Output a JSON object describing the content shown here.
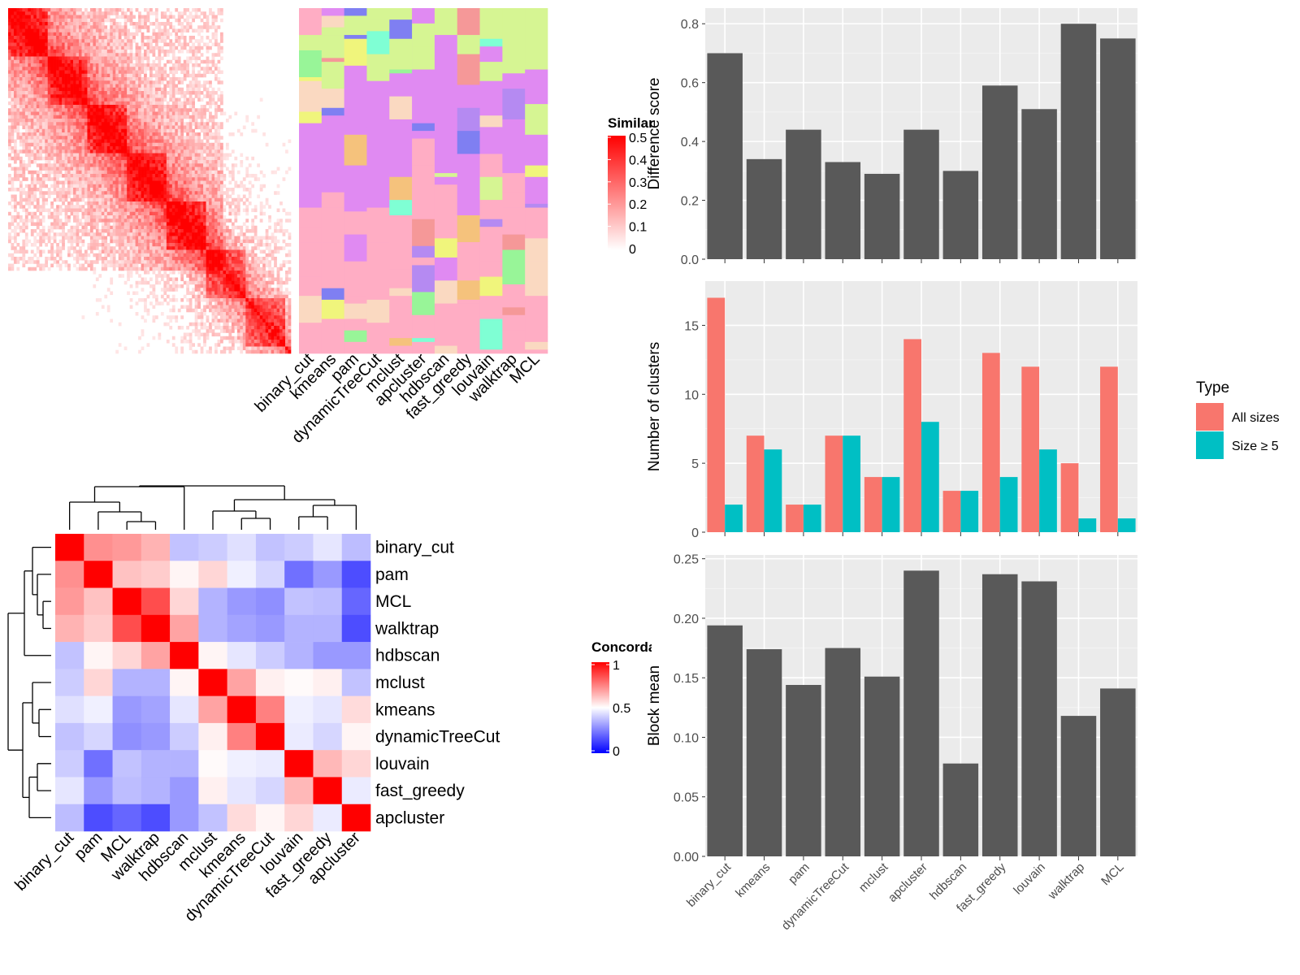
{
  "chart_data": [
    {
      "type": "heatmap",
      "legend": {
        "title": "Similarity",
        "ticks": [
          "0.5",
          "0.4",
          "0.3",
          "0.2",
          "0.1",
          "0"
        ],
        "range": [
          0,
          0.5
        ]
      },
      "column_labels": [
        "binary_cut",
        "kmeans",
        "pam",
        "dynamicTreeCut",
        "mclust",
        "apcluster",
        "hdbscan",
        "fast_greedy",
        "louvain",
        "walktrap",
        "MCL"
      ]
    },
    {
      "type": "heatmap",
      "legend": {
        "title": "Concordance",
        "ticks": [
          "1",
          "0.5",
          "0"
        ],
        "range": [
          0,
          1
        ]
      },
      "labels": [
        "binary_cut",
        "pam",
        "MCL",
        "walktrap",
        "hdbscan",
        "mclust",
        "kmeans",
        "dynamicTreeCut",
        "louvain",
        "fast_greedy",
        "apcluster"
      ],
      "matrix": [
        [
          1.0,
          0.72,
          0.7,
          0.65,
          0.38,
          0.4,
          0.44,
          0.38,
          0.4,
          0.45,
          0.37
        ],
        [
          0.72,
          1.0,
          0.62,
          0.6,
          0.52,
          0.58,
          0.47,
          0.42,
          0.22,
          0.3,
          0.15
        ],
        [
          0.7,
          0.62,
          1.0,
          0.85,
          0.58,
          0.35,
          0.3,
          0.28,
          0.38,
          0.37,
          0.2
        ],
        [
          0.65,
          0.6,
          0.85,
          1.0,
          0.68,
          0.35,
          0.32,
          0.3,
          0.35,
          0.35,
          0.15
        ],
        [
          0.38,
          0.52,
          0.58,
          0.68,
          1.0,
          0.52,
          0.45,
          0.4,
          0.35,
          0.3,
          0.3
        ],
        [
          0.4,
          0.58,
          0.35,
          0.35,
          0.52,
          1.0,
          0.68,
          0.53,
          0.51,
          0.53,
          0.38
        ],
        [
          0.44,
          0.47,
          0.3,
          0.32,
          0.45,
          0.68,
          1.0,
          0.75,
          0.47,
          0.45,
          0.57
        ],
        [
          0.38,
          0.42,
          0.28,
          0.3,
          0.4,
          0.53,
          0.75,
          1.0,
          0.46,
          0.42,
          0.52
        ],
        [
          0.4,
          0.22,
          0.38,
          0.35,
          0.35,
          0.51,
          0.47,
          0.46,
          1.0,
          0.64,
          0.58
        ],
        [
          0.45,
          0.3,
          0.37,
          0.35,
          0.3,
          0.53,
          0.45,
          0.42,
          0.64,
          1.0,
          0.46
        ],
        [
          0.37,
          0.15,
          0.2,
          0.15,
          0.3,
          0.38,
          0.57,
          0.52,
          0.58,
          0.46,
          1.0
        ]
      ]
    },
    {
      "type": "bar",
      "categories": [
        "binary_cut",
        "kmeans",
        "pam",
        "dynamicTreeCut",
        "mclust",
        "apcluster",
        "hdbscan",
        "fast_greedy",
        "louvain",
        "walktrap",
        "MCL"
      ],
      "values": [
        0.7,
        0.34,
        0.44,
        0.33,
        0.29,
        0.44,
        0.3,
        0.59,
        0.51,
        0.8,
        0.75
      ],
      "ylabel": "Difference score",
      "ylim": [
        0,
        0.82
      ],
      "yticks": [
        0.0,
        0.2,
        0.4,
        0.6,
        0.8
      ],
      "yticklabels": [
        "0.0",
        "0.2",
        "0.4",
        "0.6",
        "0.8"
      ],
      "grid": true
    },
    {
      "type": "bar",
      "categories": [
        "binary_cut",
        "kmeans",
        "pam",
        "dynamicTreeCut",
        "mclust",
        "apcluster",
        "hdbscan",
        "fast_greedy",
        "louvain",
        "walktrap",
        "MCL"
      ],
      "series": [
        {
          "name": "All sizes",
          "values": [
            17,
            7,
            2,
            7,
            4,
            14,
            3,
            13,
            12,
            5,
            12
          ],
          "color": "#F8766D"
        },
        {
          "name": "Size ≥ 5",
          "values": [
            2,
            6,
            2,
            7,
            4,
            8,
            3,
            4,
            6,
            1,
            1
          ],
          "color": "#00BFC4"
        }
      ],
      "ylabel": "Number of clusters",
      "ylim": [
        0,
        17.5
      ],
      "yticks": [
        0,
        5,
        10,
        15
      ],
      "yticklabels": [
        "0",
        "5",
        "10",
        "15"
      ],
      "legend": {
        "title": "Type",
        "position": "right"
      },
      "grid": true
    },
    {
      "type": "bar",
      "categories": [
        "binary_cut",
        "kmeans",
        "pam",
        "dynamicTreeCut",
        "mclust",
        "apcluster",
        "hdbscan",
        "fast_greedy",
        "louvain",
        "walktrap",
        "MCL"
      ],
      "values": [
        0.194,
        0.174,
        0.144,
        0.175,
        0.151,
        0.24,
        0.078,
        0.237,
        0.231,
        0.118,
        0.141
      ],
      "ylabel": "Block mean",
      "ylim": [
        0,
        0.245
      ],
      "yticks": [
        0.0,
        0.05,
        0.1,
        0.15,
        0.2,
        0.25
      ],
      "yticklabels": [
        "0.00",
        "0.05",
        "0.10",
        "0.15",
        "0.20",
        "0.25"
      ],
      "grid": true
    }
  ],
  "colors": {
    "bar": "#595959",
    "panel_bg": "#EBEBEB",
    "grid": "#FFFFFF",
    "all_sizes": "#F8766D",
    "size5": "#00BFC4",
    "heat_high": "#FF0000",
    "heat_mid": "#FFFFFF",
    "heat_low": "#0000FF"
  }
}
